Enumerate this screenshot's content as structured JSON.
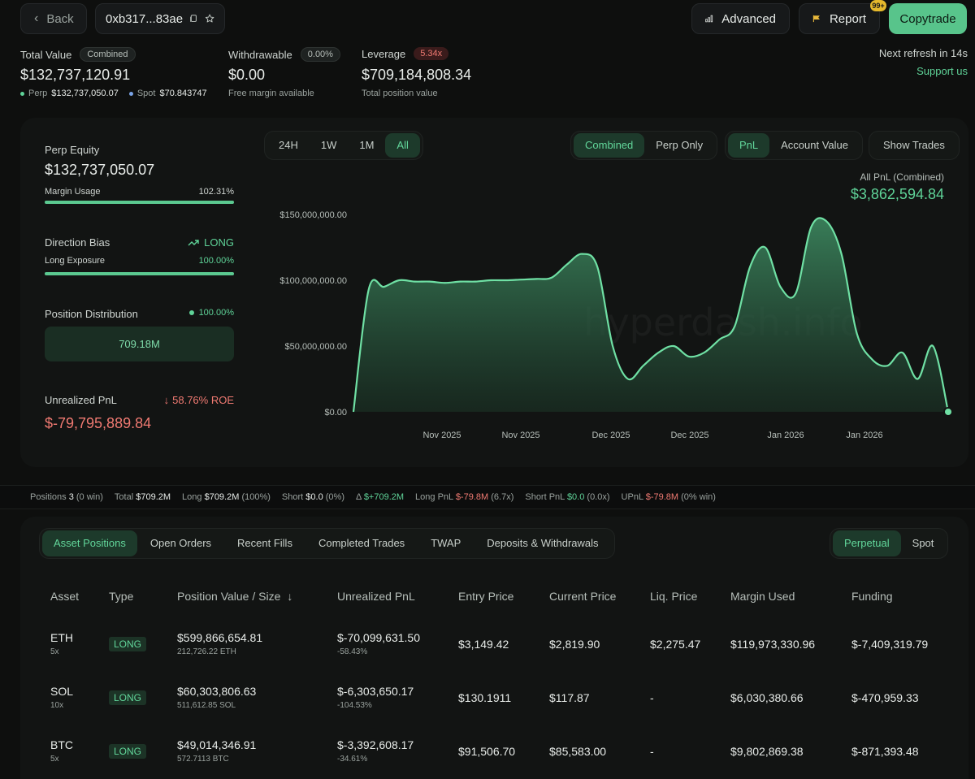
{
  "header": {
    "back_label": "Back",
    "address": "0xb317...83ae",
    "advanced_label": "Advanced",
    "report_label": "Report",
    "report_badge": "99+",
    "copytrade_label": "Copytrade"
  },
  "summary": {
    "total_value_label": "Total Value",
    "combined_tag": "Combined",
    "total_value": "$132,737,120.91",
    "perp_label": "Perp",
    "perp_value": "$132,737,050.07",
    "spot_label": "Spot",
    "spot_value": "$70.843747",
    "withdrawable_label": "Withdrawable",
    "withdrawable_pct": "0.00%",
    "withdrawable_value": "$0.00",
    "free_margin_label": "Free margin available",
    "leverage_label": "Leverage",
    "leverage_tag": "5.34x",
    "leverage_value": "$709,184,808.34",
    "total_position_label": "Total position value",
    "refresh_text": "Next refresh in 14s",
    "support_label": "Support us"
  },
  "left_panel": {
    "perp_equity_label": "Perp Equity",
    "perp_equity_value": "$132,737,050.07",
    "margin_usage_label": "Margin Usage",
    "margin_usage_value": "102.31%",
    "margin_usage_fill": 1.0,
    "direction_bias_label": "Direction Bias",
    "direction_bias_value": "LONG",
    "long_exposure_label": "Long Exposure",
    "long_exposure_value": "100.00%",
    "long_exposure_fill": 1.0,
    "position_dist_label": "Position Distribution",
    "position_dist_value": "100.00%",
    "position_dist_box": "709.18M",
    "unrealized_label": "Unrealized PnL",
    "roe_value": "58.76% ROE",
    "unrealized_value": "$-79,795,889.84"
  },
  "chart_controls": {
    "ranges": [
      "24H",
      "1W",
      "1M",
      "All"
    ],
    "views": [
      "Combined",
      "Perp Only"
    ],
    "metrics": [
      "PnL",
      "Account Value"
    ],
    "show_trades_label": "Show Trades",
    "pnl_title": "All PnL (Combined)",
    "pnl_value": "$3,862,594.84",
    "watermark": "hyperdash.info"
  },
  "chart_data": {
    "type": "area",
    "y_ticks": [
      "$150,000,000.00",
      "$100,000,000.00",
      "$50,000,000.00",
      "$0.00"
    ],
    "ylim": [
      0,
      150000000
    ],
    "x_ticks": [
      "Nov 2025",
      "Nov 2025",
      "Dec 2025",
      "Dec 2025",
      "Jan 2026",
      "Jan 2026"
    ],
    "series": [
      {
        "values": [
          0,
          93000000,
          95000000,
          100000000,
          99000000,
          99000000,
          98000000,
          99000000,
          99000000,
          100000000,
          100000000,
          100500000,
          101000000,
          102000000,
          112000000,
          120000000,
          110000000,
          50000000,
          25000000,
          35000000,
          45000000,
          50000000,
          42000000,
          45000000,
          55000000,
          65000000,
          110000000,
          125000000,
          95000000,
          90000000,
          140000000,
          145000000,
          120000000,
          60000000,
          40000000,
          35000000,
          45000000,
          25000000,
          50000000,
          0
        ]
      }
    ],
    "grid": false
  },
  "stats_bar": {
    "positions_label": "Positions",
    "positions_value": "3",
    "positions_note": "(0 win)",
    "total_label": "Total",
    "total_value": "$709.2M",
    "long_label": "Long",
    "long_value": "$709.2M",
    "long_note": "(100%)",
    "short_label": "Short",
    "short_value": "$0.0",
    "short_note": "(0%)",
    "delta_label": "Δ",
    "delta_value": "$+709.2M",
    "long_pnl_label": "Long PnL",
    "long_pnl_value": "$-79.8M",
    "long_pnl_note": "(6.7x)",
    "short_pnl_label": "Short PnL",
    "short_pnl_value": "$0.0",
    "short_pnl_note": "(0.0x)",
    "upnl_label": "UPnL",
    "upnl_value": "$-79.8M",
    "upnl_note": "(0% win)"
  },
  "tabs": [
    "Asset Positions",
    "Open Orders",
    "Recent Fills",
    "Completed Trades",
    "TWAP",
    "Deposits & Withdrawals"
  ],
  "market_tabs": [
    "Perpetual",
    "Spot"
  ],
  "table": {
    "headers": [
      "Asset",
      "Type",
      "Position Value / Size",
      "Unrealized PnL",
      "Entry Price",
      "Current Price",
      "Liq. Price",
      "Margin Used",
      "Funding"
    ],
    "rows": [
      {
        "asset": "ETH",
        "lev": "5x",
        "type": "LONG",
        "value": "$599,866,654.81",
        "size": "212,726.22 ETH",
        "upnl": "$-70,099,631.50",
        "upnl_pct": "-58.43%",
        "entry": "$3,149.42",
        "current": "$2,819.90",
        "liq": "$2,275.47",
        "margin": "$119,973,330.96",
        "funding": "$-7,409,319.79"
      },
      {
        "asset": "SOL",
        "lev": "10x",
        "type": "LONG",
        "value": "$60,303,806.63",
        "size": "511,612.85 SOL",
        "upnl": "$-6,303,650.17",
        "upnl_pct": "-104.53%",
        "entry": "$130.1911",
        "current": "$117.87",
        "liq": "-",
        "margin": "$6,030,380.66",
        "funding": "$-470,959.33"
      },
      {
        "asset": "BTC",
        "lev": "5x",
        "type": "LONG",
        "value": "$49,014,346.91",
        "size": "572.7113 BTC",
        "upnl": "$-3,392,608.17",
        "upnl_pct": "-34.61%",
        "entry": "$91,506.70",
        "current": "$85,583.00",
        "liq": "-",
        "margin": "$9,802,869.38",
        "funding": "$-871,393.48"
      }
    ]
  }
}
